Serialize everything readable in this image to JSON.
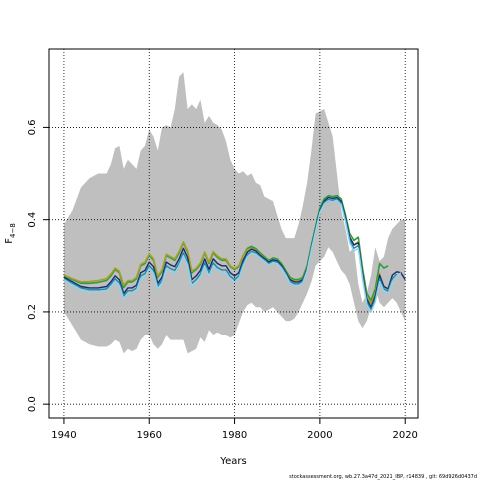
{
  "chart_data": {
    "type": "line",
    "xlabel": "Years",
    "ylabel_main": "F",
    "ylabel_sub": "4−8",
    "xlim": [
      1936.5,
      2023
    ],
    "ylim": [
      -0.03,
      0.77
    ],
    "xticks": [
      1940,
      1960,
      1980,
      2000,
      2020
    ],
    "yticks": [
      0.0,
      0.2,
      0.4,
      0.6
    ],
    "xtick_labels": [
      "1940",
      "1960",
      "1980",
      "2000",
      "2020"
    ],
    "ytick_labels": [
      "0.0",
      "0.2",
      "0.4",
      "0.6"
    ],
    "grid": true,
    "grid_style": "dotted",
    "band": {
      "x": [
        1940,
        1942,
        1944,
        1946,
        1948,
        1950,
        1951,
        1952,
        1953,
        1954,
        1955,
        1956,
        1957,
        1958,
        1959,
        1960,
        1961,
        1962,
        1963,
        1964,
        1965,
        1966,
        1967,
        1968,
        1969,
        1970,
        1971,
        1972,
        1973,
        1974,
        1975,
        1976,
        1977,
        1978,
        1979,
        1980,
        1981,
        1982,
        1983,
        1984,
        1985,
        1986,
        1987,
        1988,
        1989,
        1990,
        1991,
        1992,
        1993,
        1994,
        1995,
        1996,
        1997,
        1998,
        1999,
        2000,
        2001,
        2002,
        2003,
        2004,
        2005,
        2006,
        2007,
        2008,
        2009,
        2010,
        2011,
        2012,
        2013,
        2014,
        2015,
        2016,
        2017,
        2018,
        2019,
        2020
      ],
      "upper": [
        0.39,
        0.42,
        0.47,
        0.49,
        0.5,
        0.5,
        0.52,
        0.555,
        0.56,
        0.51,
        0.53,
        0.52,
        0.51,
        0.55,
        0.56,
        0.595,
        0.58,
        0.55,
        0.6,
        0.605,
        0.6,
        0.64,
        0.71,
        0.72,
        0.64,
        0.65,
        0.64,
        0.66,
        0.61,
        0.625,
        0.61,
        0.605,
        0.595,
        0.57,
        0.53,
        0.51,
        0.5,
        0.505,
        0.495,
        0.5,
        0.48,
        0.475,
        0.45,
        0.445,
        0.44,
        0.41,
        0.38,
        0.36,
        0.36,
        0.36,
        0.39,
        0.43,
        0.48,
        0.55,
        0.63,
        0.635,
        0.64,
        0.61,
        0.58,
        0.5,
        0.42,
        0.38,
        0.33,
        0.34,
        0.26,
        0.22,
        0.24,
        0.28,
        0.34,
        0.31,
        0.32,
        0.36,
        0.38,
        0.39,
        0.4,
        0.4
      ],
      "lower": [
        0.2,
        0.17,
        0.14,
        0.13,
        0.125,
        0.125,
        0.13,
        0.14,
        0.135,
        0.11,
        0.12,
        0.115,
        0.12,
        0.14,
        0.15,
        0.15,
        0.13,
        0.12,
        0.13,
        0.15,
        0.14,
        0.14,
        0.14,
        0.14,
        0.11,
        0.115,
        0.12,
        0.145,
        0.135,
        0.16,
        0.15,
        0.155,
        0.15,
        0.15,
        0.145,
        0.15,
        0.175,
        0.2,
        0.215,
        0.22,
        0.21,
        0.21,
        0.2,
        0.205,
        0.21,
        0.2,
        0.19,
        0.18,
        0.18,
        0.185,
        0.2,
        0.22,
        0.24,
        0.265,
        0.3,
        0.31,
        0.32,
        0.34,
        0.33,
        0.31,
        0.29,
        0.28,
        0.26,
        0.22,
        0.18,
        0.165,
        0.18,
        0.21,
        0.25,
        0.22,
        0.21,
        0.22,
        0.23,
        0.22,
        0.2,
        0.18
      ]
    },
    "series": [
      {
        "color": "#2e9c3d",
        "width": 1.6,
        "x": [
          1940,
          1942,
          1944,
          1946,
          1948,
          1950,
          1951,
          1952,
          1953,
          1954,
          1955,
          1956,
          1957,
          1958,
          1959,
          1960,
          1961,
          1962,
          1963,
          1964,
          1965,
          1966,
          1967,
          1968,
          1969,
          1970,
          1971,
          1972,
          1973,
          1974,
          1975,
          1976,
          1977,
          1978,
          1979,
          1980,
          1981,
          1982,
          1983,
          1984,
          1985,
          1986,
          1987,
          1988,
          1989,
          1990,
          1991,
          1992,
          1993,
          1994,
          1995,
          1996,
          1997,
          1998,
          1999,
          2000,
          2001,
          2002,
          2003,
          2004,
          2005,
          2006,
          2007,
          2008,
          2009,
          2010,
          2011,
          2012,
          2013,
          2014,
          2015,
          2016
        ],
        "values": [
          0.278,
          0.27,
          0.262,
          0.262,
          0.264,
          0.268,
          0.278,
          0.292,
          0.285,
          0.253,
          0.265,
          0.265,
          0.272,
          0.3,
          0.305,
          0.323,
          0.312,
          0.275,
          0.288,
          0.322,
          0.317,
          0.312,
          0.328,
          0.35,
          0.33,
          0.285,
          0.292,
          0.303,
          0.328,
          0.305,
          0.328,
          0.318,
          0.312,
          0.312,
          0.298,
          0.292,
          0.298,
          0.322,
          0.338,
          0.342,
          0.337,
          0.328,
          0.32,
          0.312,
          0.317,
          0.315,
          0.305,
          0.29,
          0.275,
          0.27,
          0.27,
          0.275,
          0.3,
          0.345,
          0.385,
          0.425,
          0.445,
          0.452,
          0.45,
          0.452,
          0.445,
          0.41,
          0.37,
          0.355,
          0.362,
          0.295,
          0.24,
          0.225,
          0.25,
          0.305,
          0.295,
          0.3
        ]
      },
      {
        "color": "#a6a02a",
        "width": 1.6,
        "x": [
          1940,
          1942,
          1944,
          1946,
          1948,
          1950,
          1951,
          1952,
          1953,
          1954,
          1955,
          1956,
          1957,
          1958,
          1959,
          1960,
          1961,
          1962,
          1963,
          1964,
          1965,
          1966,
          1967,
          1968,
          1969,
          1970,
          1971,
          1972,
          1973,
          1974,
          1975,
          1976,
          1977,
          1978,
          1979,
          1980,
          1981,
          1982,
          1983,
          1984,
          1985,
          1986,
          1987,
          1988,
          1989,
          1990,
          1991,
          1992,
          1993,
          1994,
          1995,
          1996,
          1997,
          1998,
          1999,
          2000,
          2001,
          2002,
          2003,
          2004,
          2005,
          2006,
          2007,
          2008,
          2009,
          2010,
          2011,
          2012,
          2013,
          2014
        ],
        "values": [
          0.28,
          0.272,
          0.265,
          0.266,
          0.268,
          0.272,
          0.282,
          0.295,
          0.288,
          0.258,
          0.268,
          0.268,
          0.275,
          0.303,
          0.308,
          0.326,
          0.315,
          0.278,
          0.291,
          0.325,
          0.32,
          0.315,
          0.331,
          0.352,
          0.333,
          0.288,
          0.295,
          0.306,
          0.33,
          0.308,
          0.331,
          0.321,
          0.315,
          0.315,
          0.3,
          0.294,
          0.3,
          0.322,
          0.335,
          0.338,
          0.333,
          0.325,
          0.317,
          0.309,
          0.313,
          0.311,
          0.301,
          0.287,
          0.272,
          0.267,
          0.267,
          0.272,
          0.297,
          0.34,
          0.378,
          0.418,
          0.435,
          0.44,
          0.44,
          0.442,
          0.435,
          0.4,
          0.362,
          0.345,
          0.352,
          0.285,
          0.232,
          0.218,
          0.24,
          0.285
        ]
      },
      {
        "color": "#1f2a66",
        "width": 1.4,
        "x": [
          1940,
          1942,
          1944,
          1946,
          1948,
          1950,
          1951,
          1952,
          1953,
          1954,
          1955,
          1956,
          1957,
          1958,
          1959,
          1960,
          1961,
          1962,
          1963,
          1964,
          1965,
          1966,
          1967,
          1968,
          1969,
          1970,
          1971,
          1972,
          1973,
          1974,
          1975,
          1976,
          1977,
          1978,
          1979,
          1980,
          1981,
          1982,
          1983,
          1984,
          1985,
          1986,
          1987,
          1988,
          1989,
          1990,
          1991,
          1992,
          1993,
          1994,
          1995,
          1996,
          1997,
          1998,
          1999,
          2000,
          2001,
          2002,
          2003,
          2004,
          2005,
          2006,
          2007,
          2008,
          2009,
          2010,
          2011,
          2012,
          2013,
          2014,
          2015,
          2016,
          2017,
          2018,
          2019,
          2020
        ],
        "values": [
          0.275,
          0.265,
          0.255,
          0.252,
          0.252,
          0.255,
          0.265,
          0.278,
          0.27,
          0.24,
          0.252,
          0.252,
          0.258,
          0.285,
          0.29,
          0.308,
          0.298,
          0.262,
          0.275,
          0.308,
          0.302,
          0.298,
          0.315,
          0.338,
          0.318,
          0.27,
          0.278,
          0.29,
          0.315,
          0.292,
          0.315,
          0.305,
          0.3,
          0.3,
          0.285,
          0.278,
          0.285,
          0.312,
          0.33,
          0.336,
          0.332,
          0.323,
          0.316,
          0.308,
          0.313,
          0.311,
          0.301,
          0.286,
          0.27,
          0.265,
          0.265,
          0.27,
          0.295,
          0.34,
          0.38,
          0.42,
          0.44,
          0.448,
          0.446,
          0.448,
          0.44,
          0.405,
          0.362,
          0.345,
          0.35,
          0.285,
          0.228,
          0.21,
          0.235,
          0.28,
          0.255,
          0.25,
          0.28,
          0.287,
          0.285,
          0.27
        ]
      },
      {
        "color": "#1c8aa8",
        "width": 1.4,
        "x": [
          1940,
          1942,
          1944,
          1946,
          1948,
          1950,
          1951,
          1952,
          1953,
          1954,
          1955,
          1956,
          1957,
          1958,
          1959,
          1960,
          1961,
          1962,
          1963,
          1964,
          1965,
          1966,
          1967,
          1968,
          1969,
          1970,
          1971,
          1972,
          1973,
          1974,
          1975,
          1976,
          1977,
          1978,
          1979,
          1980,
          1981,
          1982,
          1983,
          1984,
          1985,
          1986,
          1987,
          1988,
          1989,
          1990,
          1991,
          1992,
          1993,
          1994,
          1995,
          1996,
          1997,
          1998,
          1999,
          2000,
          2001,
          2002,
          2003,
          2004,
          2005,
          2006,
          2007,
          2008,
          2009,
          2010,
          2011,
          2012,
          2013,
          2014,
          2015,
          2016,
          2017,
          2018
        ],
        "values": [
          0.272,
          0.262,
          0.252,
          0.248,
          0.248,
          0.25,
          0.26,
          0.272,
          0.263,
          0.235,
          0.246,
          0.246,
          0.252,
          0.278,
          0.283,
          0.3,
          0.29,
          0.256,
          0.268,
          0.3,
          0.294,
          0.29,
          0.306,
          0.328,
          0.308,
          0.262,
          0.27,
          0.282,
          0.306,
          0.284,
          0.306,
          0.296,
          0.291,
          0.291,
          0.277,
          0.27,
          0.278,
          0.305,
          0.324,
          0.331,
          0.328,
          0.32,
          0.313,
          0.305,
          0.31,
          0.308,
          0.298,
          0.283,
          0.266,
          0.261,
          0.261,
          0.267,
          0.292,
          0.338,
          0.378,
          0.418,
          0.437,
          0.444,
          0.442,
          0.445,
          0.436,
          0.4,
          0.356,
          0.338,
          0.344,
          0.278,
          0.222,
          0.205,
          0.228,
          0.272,
          0.25,
          0.245,
          0.272,
          0.282
        ]
      },
      {
        "color": "#8fd3ef",
        "width": 1.4,
        "x": [
          1940,
          1942,
          1944,
          1946,
          1948,
          1950,
          1951,
          1952,
          1953,
          1954,
          1955,
          1956,
          1957,
          1958,
          1959,
          1960,
          1961,
          1962,
          1963,
          1964,
          1965,
          1966,
          1967,
          1968,
          1969,
          1970,
          1971,
          1972,
          1973,
          1974,
          1975,
          1976,
          1977,
          1978,
          1979,
          1980,
          1981,
          1982,
          1983,
          1984,
          1985,
          1986,
          1987,
          1988,
          1989,
          1990,
          1991,
          1992,
          1993,
          1994,
          1995,
          1996,
          1997,
          1998,
          1999,
          2000,
          2001,
          2002,
          2003,
          2004,
          2005,
          2006,
          2007,
          2008,
          2009,
          2010,
          2011,
          2012,
          2013,
          2014,
          2015,
          2016,
          2017,
          2018,
          2019
        ],
        "values": [
          0.27,
          0.258,
          0.248,
          0.244,
          0.244,
          0.246,
          0.255,
          0.266,
          0.257,
          0.228,
          0.24,
          0.24,
          0.246,
          0.272,
          0.277,
          0.294,
          0.284,
          0.25,
          0.262,
          0.294,
          0.288,
          0.284,
          0.3,
          0.322,
          0.302,
          0.255,
          0.263,
          0.276,
          0.3,
          0.278,
          0.3,
          0.29,
          0.285,
          0.285,
          0.271,
          0.264,
          0.272,
          0.3,
          0.32,
          0.328,
          0.325,
          0.317,
          0.31,
          0.302,
          0.307,
          0.305,
          0.295,
          0.28,
          0.262,
          0.257,
          0.257,
          0.263,
          0.289,
          0.335,
          0.375,
          0.415,
          0.434,
          0.441,
          0.439,
          0.442,
          0.432,
          0.395,
          0.35,
          0.332,
          0.338,
          0.272,
          0.216,
          0.2,
          0.222,
          0.266,
          0.245,
          0.24,
          0.266,
          0.278,
          0.285
        ]
      }
    ],
    "footer": "stockassessment.org, wb.27.3a47d_2021_IBP, r14839 , git: 69d926d0437d"
  }
}
